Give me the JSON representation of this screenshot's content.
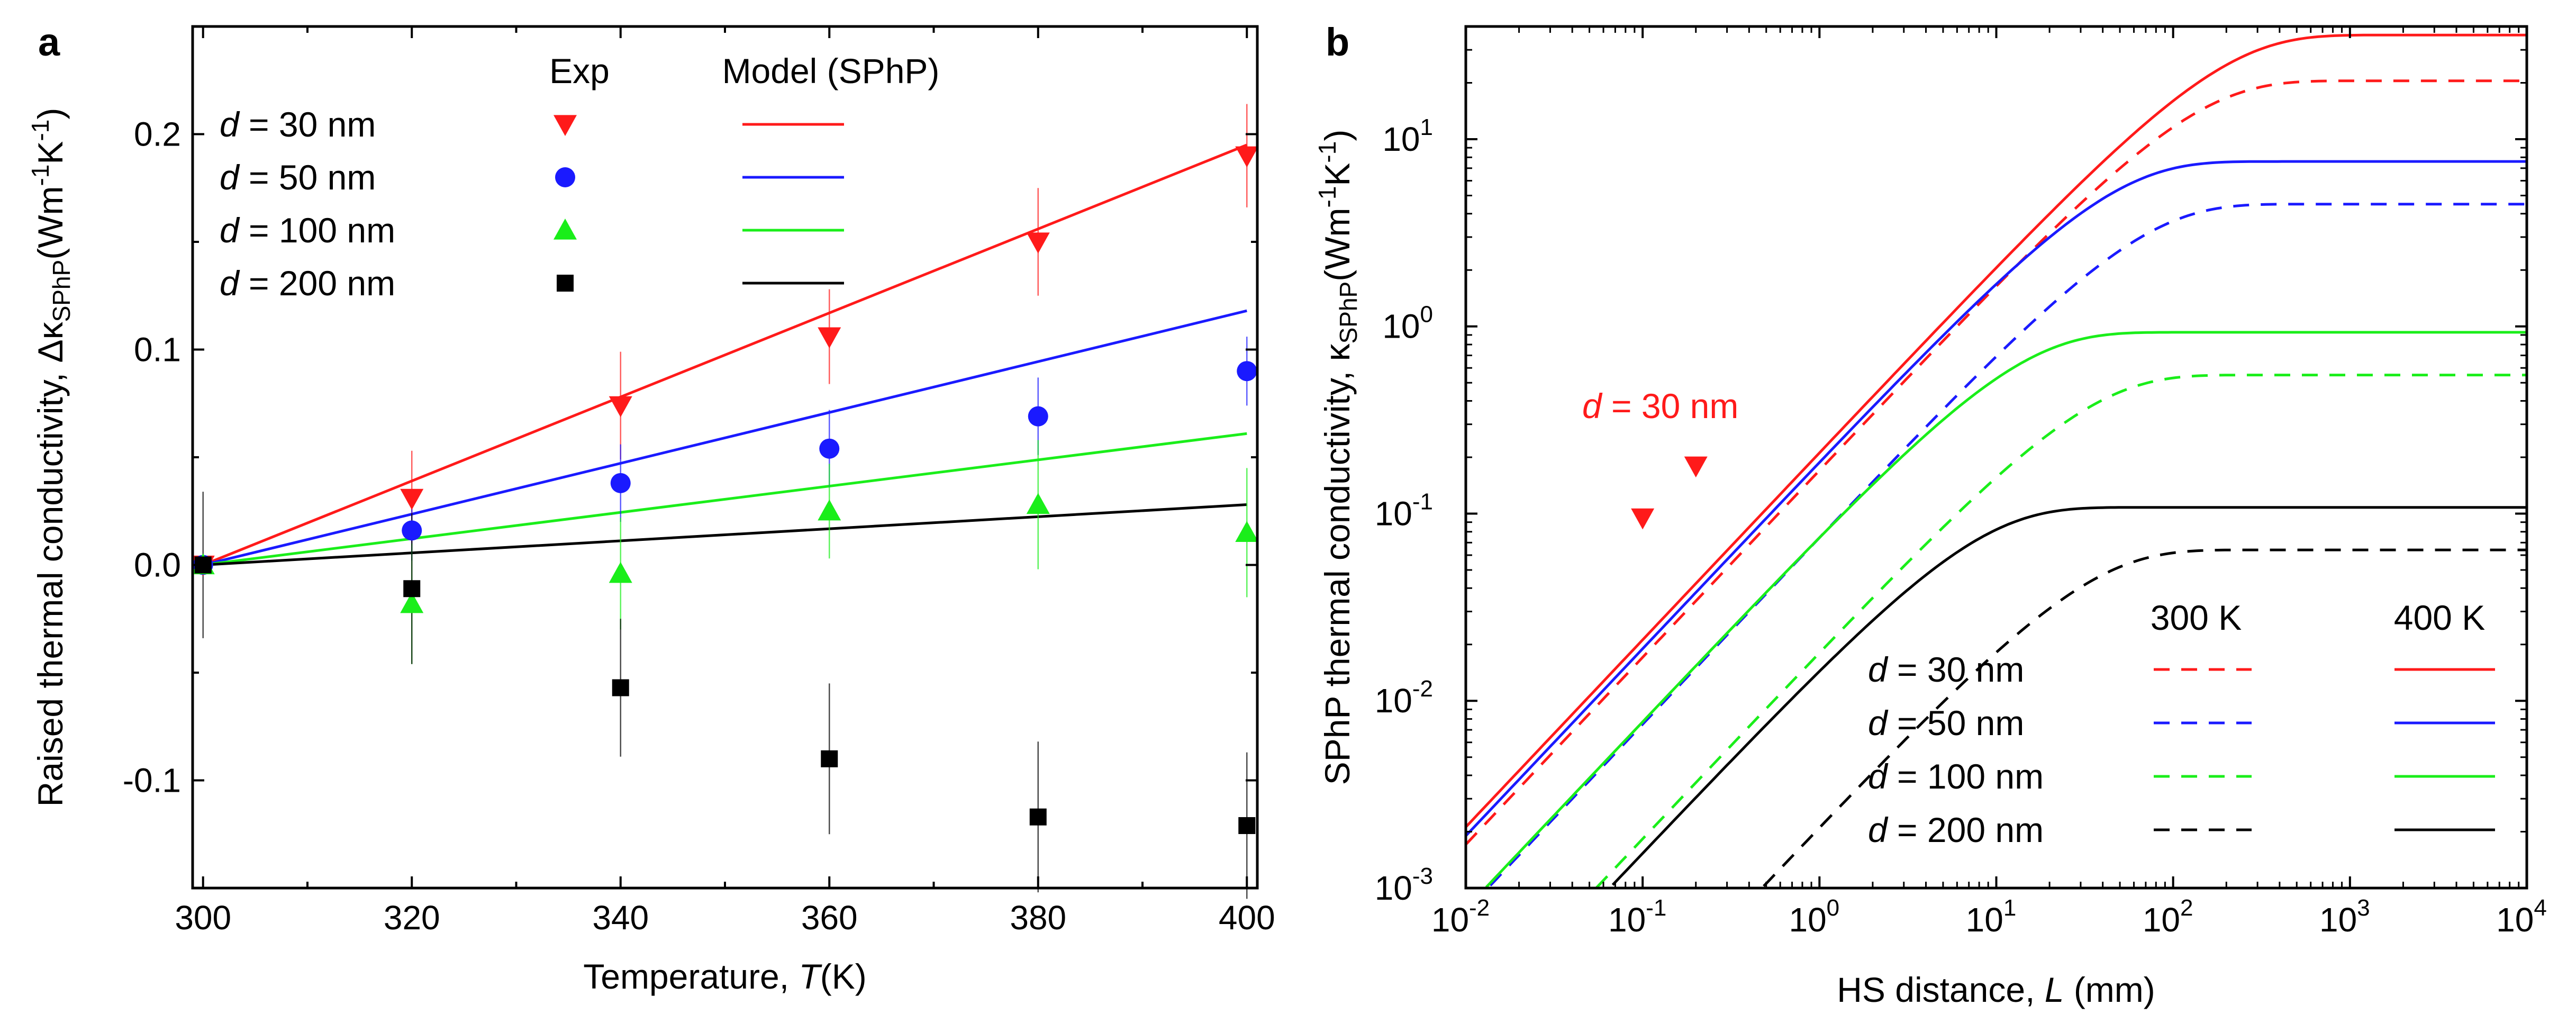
{
  "chart_data": [
    {
      "panel": "a",
      "type": "scatter+line",
      "xlabel_prefix": "Temperature, ",
      "xlabel_var": "T",
      "xlabel_unit": "(K)",
      "ylabel_prefix": "Raised thermal conductivity, Δκ",
      "ylabel_sub": "SPhP",
      "ylabel_unit": "(Wm",
      "ylabel_sup1": "-1",
      "ylabel_mid": "K",
      "ylabel_sup2": "-1",
      "ylabel_end": ")",
      "xlim": [
        299,
        401
      ],
      "ylim": [
        -0.15,
        0.25
      ],
      "xticks": [
        300,
        320,
        340,
        360,
        380,
        400
      ],
      "xtick_labels": [
        "300",
        "320",
        "340",
        "360",
        "380",
        "400"
      ],
      "yticks": [
        -0.1,
        0.0,
        0.1,
        0.2
      ],
      "ytick_labels": [
        "-0.1",
        "0.0",
        "0.1",
        "0.2"
      ],
      "legend": {
        "header_exp": "Exp",
        "header_model": "Model (SPhP)",
        "position": "top-left"
      },
      "series": [
        {
          "name": "d = 30 nm",
          "var": "d",
          "label": " = 30 nm",
          "color": "#ff1a1a",
          "marker": "triangle-down",
          "x": [
            300,
            320,
            340,
            360,
            380,
            400
          ],
          "y": [
            0.0,
            0.031,
            0.074,
            0.106,
            0.15,
            0.19
          ],
          "err": [
            0.0,
            0.022,
            0.025,
            0.022,
            0.025,
            0.024
          ],
          "model_x": [
            300,
            400
          ],
          "model_y": [
            0.0,
            0.195
          ]
        },
        {
          "name": "d = 50 nm",
          "var": "d",
          "label": " = 50 nm",
          "color": "#1a1aff",
          "marker": "circle",
          "x": [
            300,
            320,
            340,
            360,
            380,
            400
          ],
          "y": [
            0.0,
            0.016,
            0.038,
            0.054,
            0.069,
            0.09
          ],
          "err": [
            0.0,
            0.014,
            0.018,
            0.018,
            0.018,
            0.016
          ],
          "model_x": [
            300,
            400
          ],
          "model_y": [
            0.0,
            0.118
          ]
        },
        {
          "name": "d = 100 nm",
          "var": "d",
          "label": " = 100 nm",
          "color": "#1aee1a",
          "marker": "triangle-up",
          "x": [
            300,
            320,
            340,
            360,
            380,
            400
          ],
          "y": [
            0.0,
            -0.018,
            -0.004,
            0.025,
            0.028,
            0.015
          ],
          "err": [
            0.0,
            0.028,
            0.026,
            0.022,
            0.03,
            0.03
          ],
          "model_x": [
            300,
            400
          ],
          "model_y": [
            0.0,
            0.061
          ]
        },
        {
          "name": "d = 200 nm",
          "var": "d",
          "label": " = 200 nm",
          "color": "#000000",
          "marker": "square",
          "x": [
            300,
            320,
            340,
            360,
            380,
            400
          ],
          "y": [
            0.0,
            -0.011,
            -0.057,
            -0.09,
            -0.117,
            -0.121
          ],
          "err": [
            0.034,
            0.035,
            0.032,
            0.035,
            0.035,
            0.034
          ],
          "model_x": [
            300,
            400
          ],
          "model_y": [
            0.0,
            0.028
          ]
        }
      ]
    },
    {
      "panel": "b",
      "type": "line",
      "xscale": "log",
      "yscale": "log",
      "xlabel_prefix": "HS distance, ",
      "xlabel_var": "L",
      "xlabel_unit": " (mm)",
      "ylabel_prefix": "SPhP thermal conductivity, κ",
      "ylabel_sub": "SPhP",
      "ylabel_unit": "(Wm",
      "ylabel_sup1": "-1",
      "ylabel_mid": "K",
      "ylabel_sup2": "-1",
      "ylabel_end": ")",
      "xlim": [
        0.01,
        10000
      ],
      "ylim": [
        0.001,
        40
      ],
      "xtick_exponents": [
        "-2",
        "-1",
        "0",
        "1",
        "2",
        "3",
        "4"
      ],
      "ytick_exponents": [
        "-3",
        "-2",
        "-1",
        "0",
        "1"
      ],
      "tick_base": "10",
      "annotation": {
        "var": "d",
        "text": " = 30 nm",
        "color": "#ff1a1a"
      },
      "exp_points": {
        "color": "#ff1a1a",
        "marker": "triangle-down",
        "x": [
          0.1,
          0.2
        ],
        "y": [
          0.095,
          0.18
        ]
      },
      "legend": {
        "header_300": "300 K",
        "header_400": "400 K",
        "position": "bottom-right"
      },
      "series": [
        {
          "name": "d = 30 nm",
          "var": "d",
          "label": " = 30 nm",
          "color": "#ff1a1a",
          "kappa_300K": 20.5,
          "kappa_400K": 36.0
        },
        {
          "name": "d = 50 nm",
          "var": "d",
          "label": " = 50 nm",
          "color": "#1a1aff",
          "kappa_300K": 4.5,
          "kappa_400K": 7.6
        },
        {
          "name": "d = 100 nm",
          "var": "d",
          "label": " = 100 nm",
          "color": "#1aee1a",
          "kappa_300K": 0.55,
          "kappa_400K": 0.93
        },
        {
          "name": "d = 200 nm",
          "var": "d",
          "label": " = 200 nm",
          "color": "#000000",
          "kappa_300K": 0.064,
          "kappa_400K": 0.108
        }
      ],
      "curve_prop_lengths_300K": [
        120,
        60,
        30,
        30
      ],
      "curve_prop_lengths_400K": [
        170,
        40,
        12,
        7
      ]
    }
  ],
  "panels": {
    "a": "a",
    "b": "b"
  }
}
